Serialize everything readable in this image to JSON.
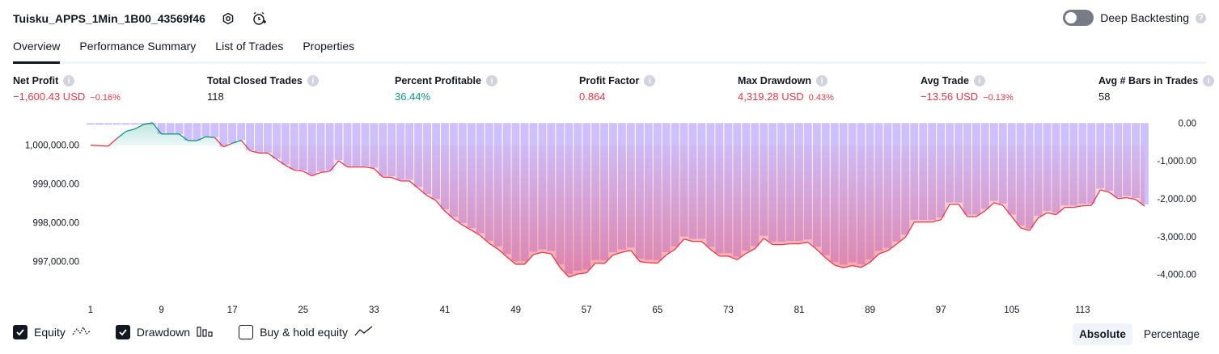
{
  "header": {
    "strategy_name": "Tuisku_APPS_1Min_1B00_43569f46",
    "settings_icon": "gear-icon",
    "alert_icon": "alarm-clock-plus-icon"
  },
  "deep_backtesting": {
    "label": "Deep Backtesting",
    "enabled": false,
    "help": "?"
  },
  "tabs": [
    {
      "label": "Overview",
      "active": true
    },
    {
      "label": "Performance Summary",
      "active": false
    },
    {
      "label": "List of Trades",
      "active": false
    },
    {
      "label": "Properties",
      "active": false
    }
  ],
  "metrics": [
    {
      "label": "Net Profit",
      "value": "−1,600.43 USD",
      "pct": "−0.16%",
      "tone": "neg"
    },
    {
      "label": "Total Closed Trades",
      "value": "118",
      "pct": "",
      "tone": "neu"
    },
    {
      "label": "Percent Profitable",
      "value": "36.44%",
      "pct": "",
      "tone": "pos"
    },
    {
      "label": "Profit Factor",
      "value": "0.864",
      "pct": "",
      "tone": "neg"
    },
    {
      "label": "Max Drawdown",
      "value": "4,319.28 USD",
      "pct": "0.43%",
      "tone": "neg"
    },
    {
      "label": "Avg Trade",
      "value": "−13.56 USD",
      "pct": "−0.13%",
      "tone": "neg"
    },
    {
      "label": "Avg # Bars in Trades",
      "value": "58",
      "pct": "",
      "tone": "neu"
    }
  ],
  "chart_data": {
    "type": "line",
    "left_axis": {
      "ticks": [
        1000000,
        999000,
        998000,
        997000
      ],
      "labels": [
        "1,000,000.00",
        "999,000.00",
        "998,000.00",
        "997,000.00"
      ],
      "range": [
        996180,
        1000620
      ]
    },
    "right_axis": {
      "ticks": [
        0,
        -1000,
        -2000,
        -3000,
        -4000
      ],
      "labels": [
        "0.00",
        "-1,000.00",
        "-2,000.00",
        "-3,000.00",
        "-4,000.00"
      ],
      "range": [
        -4500,
        50
      ]
    },
    "x_ticks": [
      1,
      9,
      17,
      25,
      33,
      41,
      49,
      57,
      65,
      73,
      81,
      89,
      97,
      105,
      113
    ],
    "x_range": [
      1,
      119
    ],
    "series": [
      {
        "name": "Equity",
        "color_up": "#089981",
        "color_down": "#f23645",
        "values": [
          1000000,
          999990,
          999980,
          1000180,
          1000360,
          1000420,
          1000540,
          1000580,
          1000290,
          1000290,
          1000290,
          1000120,
          1000120,
          1000220,
          1000200,
          999960,
          1000050,
          1000130,
          999860,
          999800,
          999800,
          999640,
          999480,
          999360,
          999330,
          999210,
          999300,
          999330,
          999600,
          999440,
          999440,
          999440,
          999400,
          999180,
          999170,
          999080,
          999080,
          998890,
          998700,
          998570,
          998300,
          998100,
          997940,
          997810,
          997670,
          997470,
          997320,
          997120,
          996930,
          996930,
          997180,
          997240,
          997200,
          996850,
          996600,
          996680,
          996710,
          996960,
          996950,
          997170,
          997240,
          997290,
          997000,
          996970,
          996960,
          997170,
          997320,
          997580,
          997520,
          997520,
          997310,
          997140,
          997140,
          997050,
          997210,
          997330,
          997600,
          997440,
          997440,
          997460,
          997460,
          997500,
          997310,
          997090,
          996910,
          996840,
          996900,
          996850,
          996980,
          997200,
          997280,
          997450,
          997630,
          998020,
          998020,
          998020,
          998080,
          998480,
          998480,
          998160,
          998160,
          998310,
          998520,
          998450,
          998160,
          997870,
          997800,
          998130,
          998260,
          998210,
          998400,
          998400,
          998440,
          998450,
          998850,
          998790,
          998620,
          998650,
          998600,
          998430
        ]
      },
      {
        "name": "Drawdown",
        "color": "#c4b5fd",
        "values": [
          0,
          0,
          0,
          0,
          0,
          0,
          0,
          0,
          -290,
          -290,
          -290,
          -460,
          -460,
          -360,
          -380,
          -620,
          -530,
          -450,
          -720,
          -780,
          -780,
          -940,
          -1100,
          -1220,
          -1250,
          -1370,
          -1280,
          -1250,
          -980,
          -1140,
          -1140,
          -1140,
          -1180,
          -1400,
          -1410,
          -1500,
          -1500,
          -1690,
          -1880,
          -2010,
          -2280,
          -2480,
          -2640,
          -2770,
          -2910,
          -3110,
          -3260,
          -3460,
          -3650,
          -3650,
          -3400,
          -3340,
          -3380,
          -3730,
          -3980,
          -3900,
          -3870,
          -3620,
          -3630,
          -3410,
          -3340,
          -3290,
          -3580,
          -3610,
          -3620,
          -3410,
          -3260,
          -3000,
          -3060,
          -3060,
          -3270,
          -3440,
          -3440,
          -3530,
          -3370,
          -3250,
          -2980,
          -3140,
          -3140,
          -3120,
          -3120,
          -3080,
          -3270,
          -3490,
          -3670,
          -3740,
          -3680,
          -3730,
          -3600,
          -3380,
          -3300,
          -3130,
          -2950,
          -2560,
          -2560,
          -2560,
          -2500,
          -2100,
          -2100,
          -2420,
          -2420,
          -2270,
          -2060,
          -2130,
          -2420,
          -2710,
          -2780,
          -2450,
          -2320,
          -2370,
          -2180,
          -2180,
          -2140,
          -2130,
          -1730,
          -1790,
          -1960,
          -1930,
          -1980,
          -2150
        ]
      }
    ]
  },
  "legend": [
    {
      "label": "Equity",
      "checked": true,
      "icon": "equity-line-icon"
    },
    {
      "label": "Drawdown",
      "checked": true,
      "icon": "drawdown-bars-icon"
    },
    {
      "label": "Buy & hold equity",
      "checked": false,
      "icon": "buy-hold-line-icon"
    }
  ],
  "view_modes": [
    {
      "label": "Absolute",
      "selected": true
    },
    {
      "label": "Percentage",
      "selected": false
    }
  ]
}
